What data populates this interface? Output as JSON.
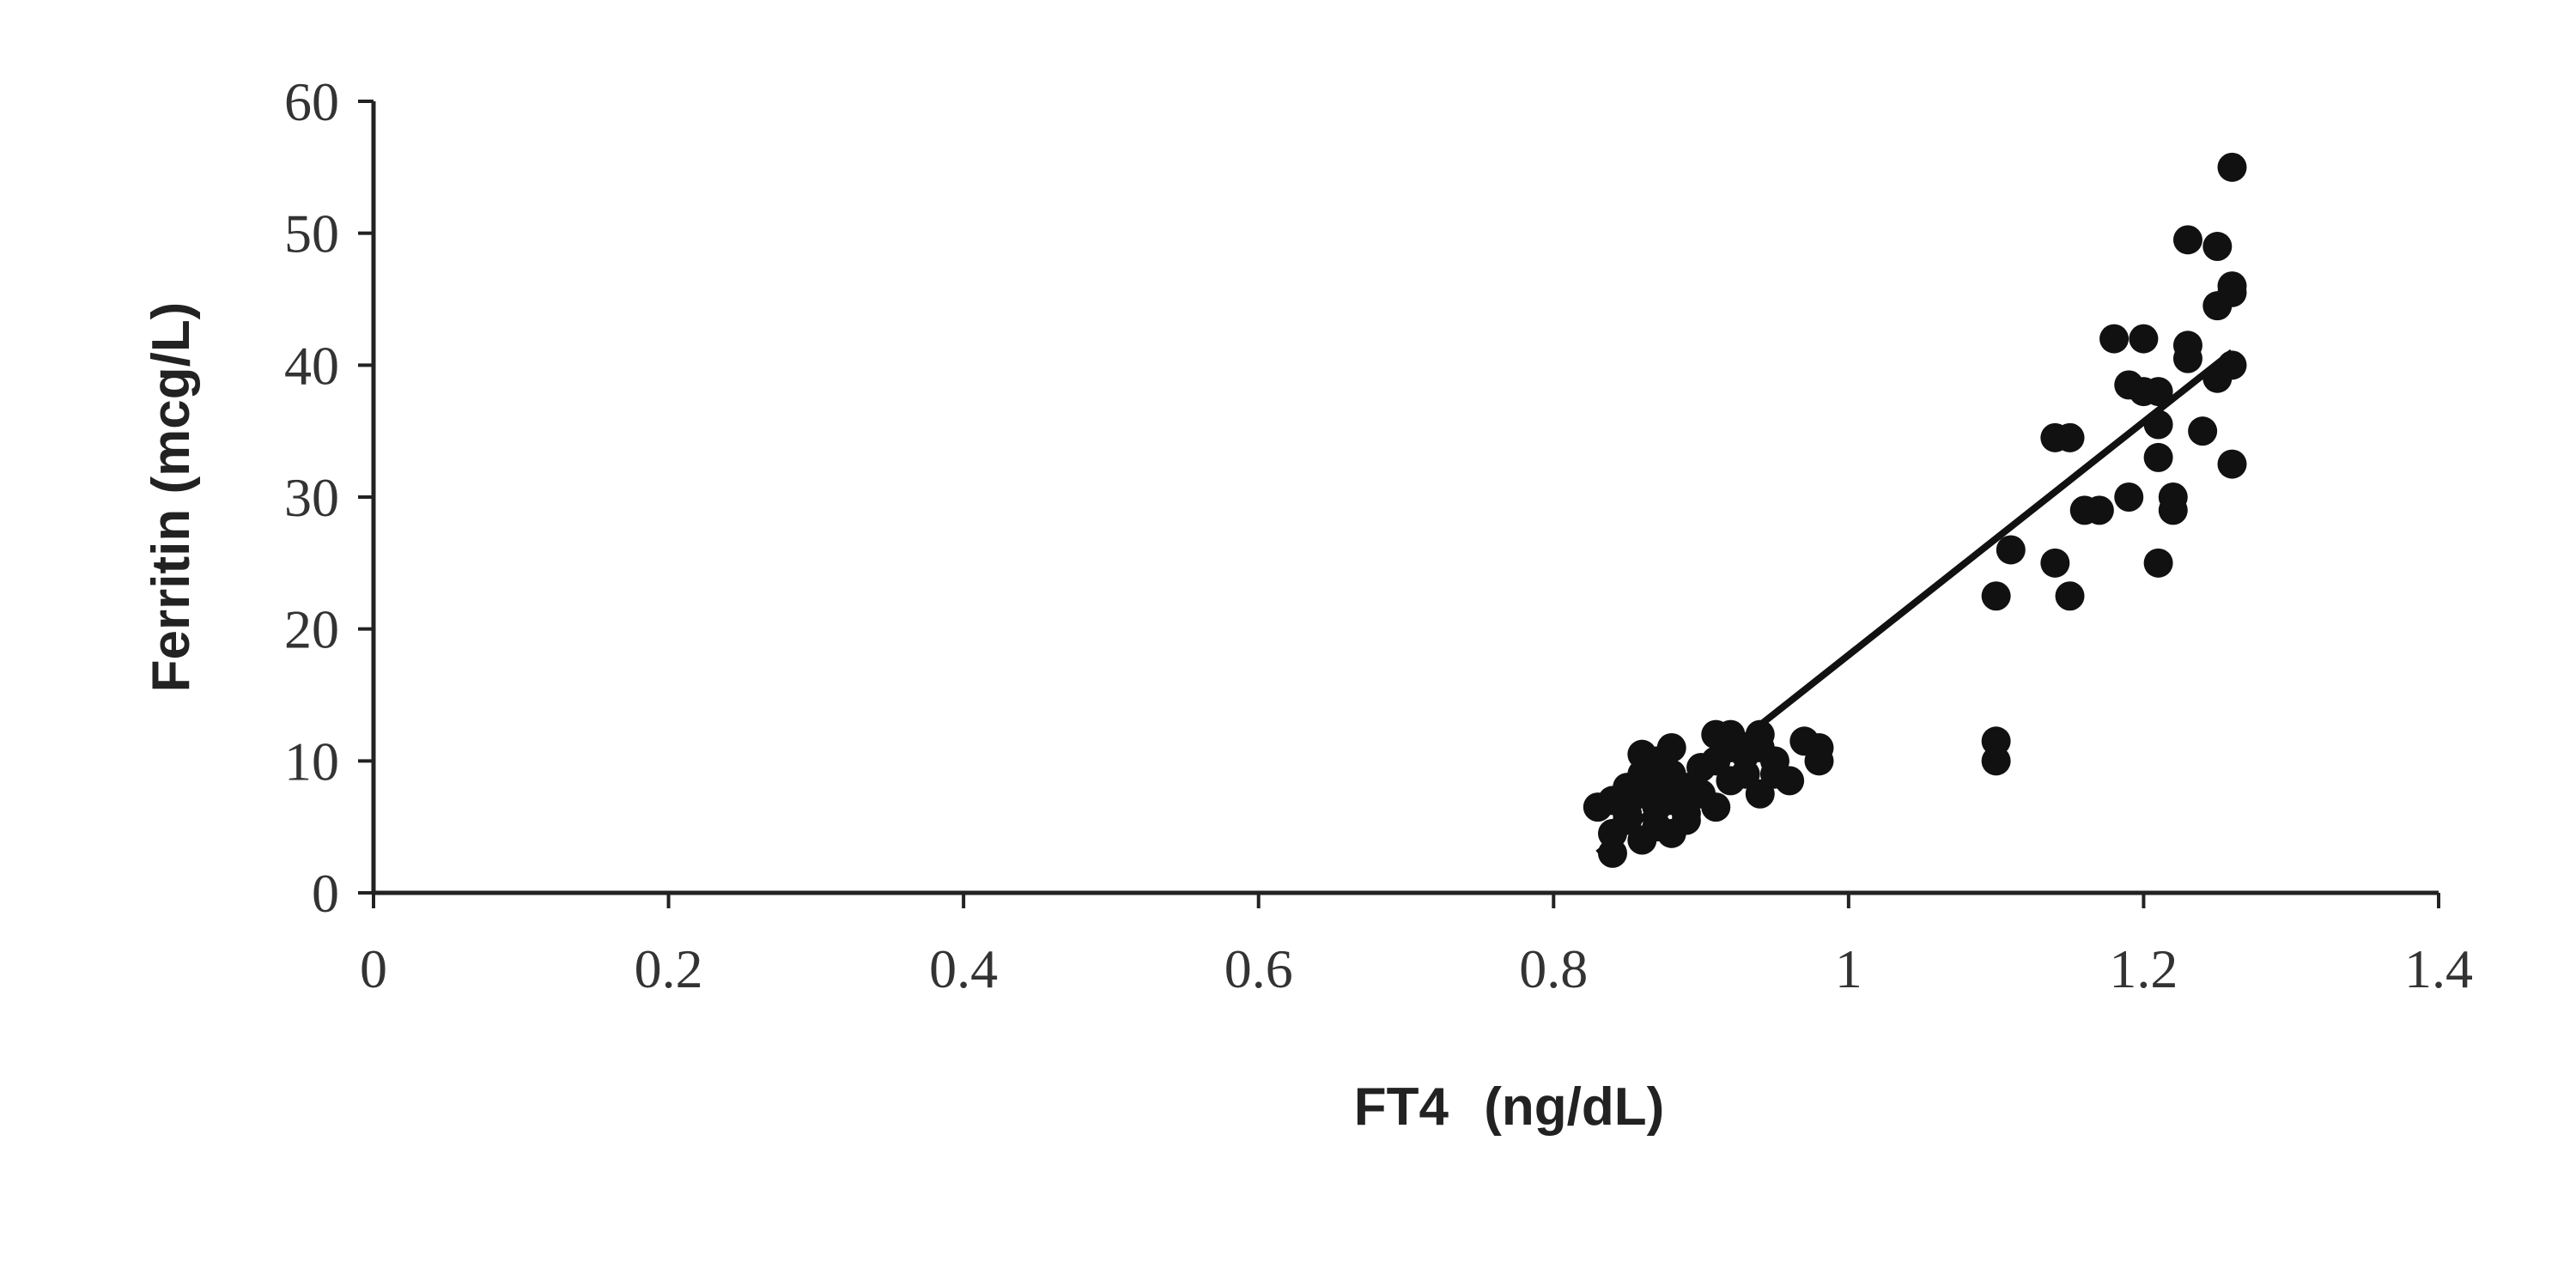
{
  "chart_data": {
    "type": "scatter",
    "title": "",
    "xlabel_main": "FT4",
    "xlabel_unit": "(ng/dL)",
    "ylabel": "Ferritin (mcg/L)",
    "xlim": [
      0,
      1.4
    ],
    "ylim": [
      0,
      60
    ],
    "x_ticks": [
      0,
      0.2,
      0.4,
      0.6,
      0.8,
      1,
      1.2,
      1.4
    ],
    "x_tick_labels": [
      "0",
      "0.2",
      "0.4",
      "0.6",
      "0.8",
      "1",
      "1.2",
      "1.4"
    ],
    "y_ticks": [
      0,
      10,
      20,
      30,
      40,
      50,
      60
    ],
    "y_tick_labels": [
      "0",
      "10",
      "20",
      "30",
      "40",
      "50",
      "60"
    ],
    "grid": false,
    "legend": "none",
    "trendline": {
      "x": [
        0.83,
        1.26
      ],
      "y": [
        3,
        41
      ]
    },
    "points": [
      [
        0.83,
        6.5
      ],
      [
        0.84,
        3
      ],
      [
        0.84,
        4.5
      ],
      [
        0.84,
        7
      ],
      [
        0.85,
        5.5
      ],
      [
        0.85,
        8
      ],
      [
        0.85,
        6
      ],
      [
        0.86,
        4
      ],
      [
        0.86,
        9
      ],
      [
        0.86,
        10.5
      ],
      [
        0.86,
        7.5
      ],
      [
        0.87,
        5
      ],
      [
        0.87,
        6.5
      ],
      [
        0.87,
        8.5
      ],
      [
        0.87,
        10
      ],
      [
        0.88,
        4.5
      ],
      [
        0.88,
        7
      ],
      [
        0.88,
        9
      ],
      [
        0.88,
        11
      ],
      [
        0.89,
        6
      ],
      [
        0.89,
        8
      ],
      [
        0.89,
        5.5
      ],
      [
        0.9,
        7.5
      ],
      [
        0.9,
        9.5
      ],
      [
        0.91,
        6.5
      ],
      [
        0.91,
        10
      ],
      [
        0.91,
        12
      ],
      [
        0.92,
        8.5
      ],
      [
        0.92,
        11
      ],
      [
        0.92,
        12
      ],
      [
        0.93,
        9
      ],
      [
        0.93,
        10.5
      ],
      [
        0.94,
        7.5
      ],
      [
        0.94,
        12
      ],
      [
        0.94,
        11
      ],
      [
        0.95,
        9
      ],
      [
        0.95,
        10
      ],
      [
        0.96,
        8.5
      ],
      [
        0.97,
        11.5
      ],
      [
        0.98,
        10
      ],
      [
        0.98,
        11
      ],
      [
        1.1,
        10
      ],
      [
        1.1,
        11.5
      ],
      [
        1.1,
        22.5
      ],
      [
        1.11,
        26
      ],
      [
        1.14,
        34.5
      ],
      [
        1.14,
        25
      ],
      [
        1.15,
        34.5
      ],
      [
        1.15,
        22.5
      ],
      [
        1.16,
        29
      ],
      [
        1.17,
        29
      ],
      [
        1.18,
        42
      ],
      [
        1.19,
        38.5
      ],
      [
        1.19,
        30
      ],
      [
        1.2,
        42
      ],
      [
        1.2,
        38
      ],
      [
        1.21,
        38
      ],
      [
        1.21,
        35.5
      ],
      [
        1.21,
        33
      ],
      [
        1.21,
        25
      ],
      [
        1.22,
        29
      ],
      [
        1.22,
        30
      ],
      [
        1.23,
        40.5
      ],
      [
        1.23,
        41.5
      ],
      [
        1.23,
        49.5
      ],
      [
        1.24,
        35
      ],
      [
        1.25,
        49
      ],
      [
        1.25,
        44.5
      ],
      [
        1.25,
        39
      ],
      [
        1.26,
        55
      ],
      [
        1.26,
        46
      ],
      [
        1.26,
        45.5
      ],
      [
        1.26,
        40
      ],
      [
        1.26,
        32.5
      ]
    ]
  }
}
